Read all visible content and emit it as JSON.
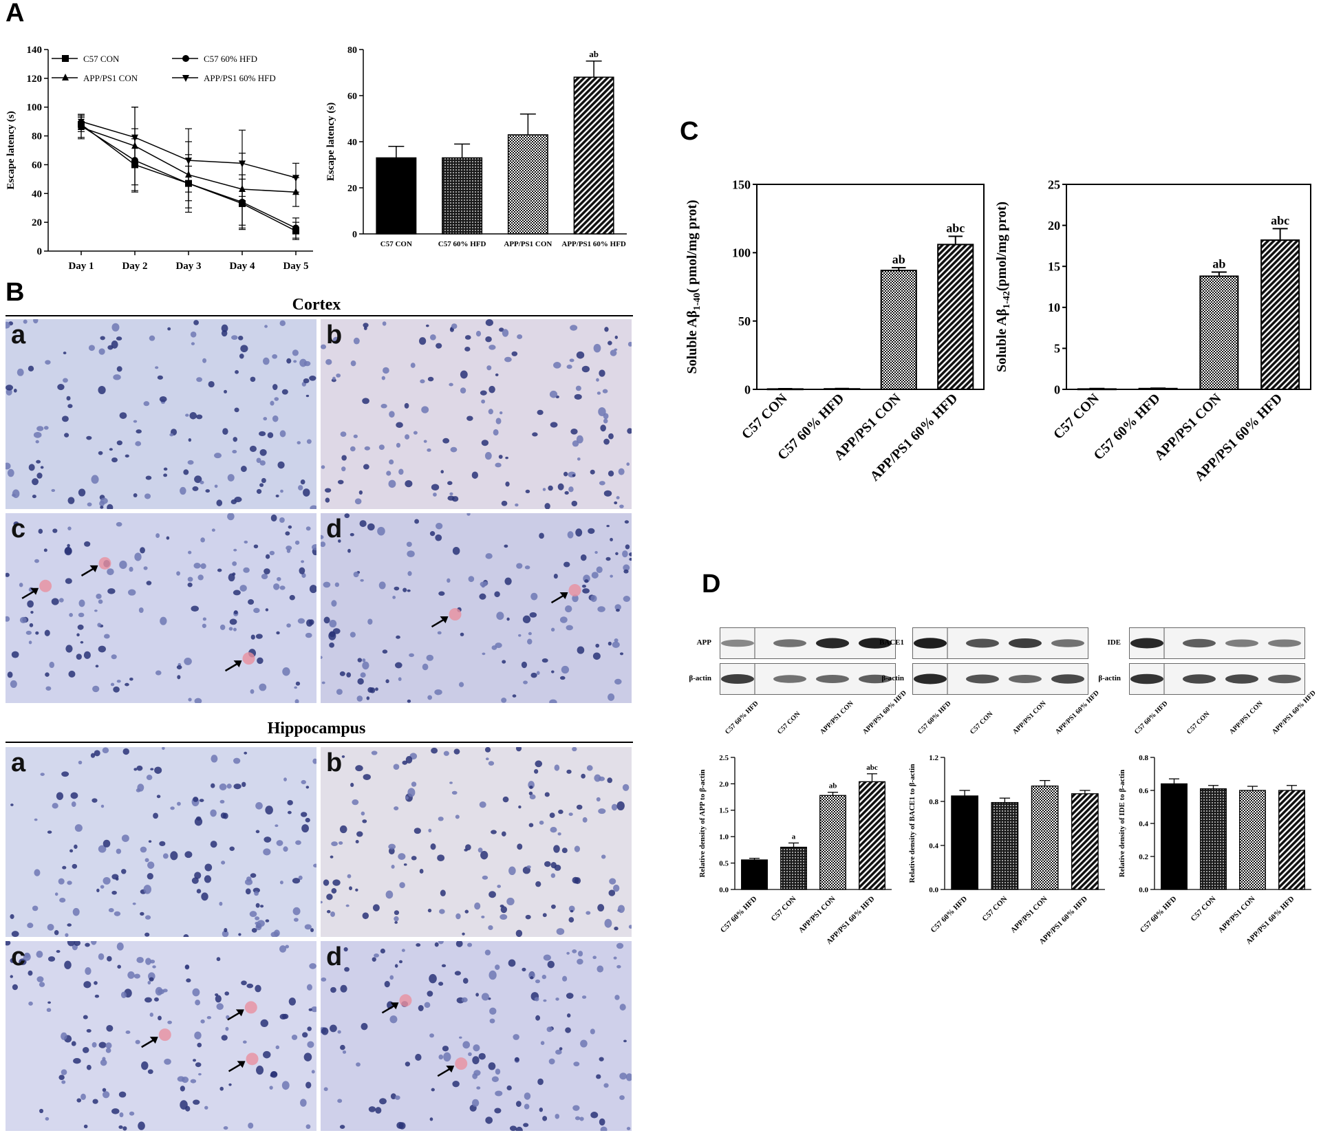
{
  "panel_labels": {
    "A": "A",
    "B": "B",
    "C": "C",
    "D": "D"
  },
  "colors": {
    "axis": "#000000",
    "tissue": "#c9cfe8",
    "nucleus": "#2a3478",
    "plaque": "#e8909f",
    "text": "#000000"
  },
  "histology": {
    "cortex_title": "Cortex",
    "hippocampus_title": "Hippocampus",
    "cortex_panels": [
      {
        "label": "a",
        "arrows": 0
      },
      {
        "label": "b",
        "arrows": 0
      },
      {
        "label": "c",
        "arrows": 3
      },
      {
        "label": "d",
        "arrows": 2
      }
    ],
    "hippocampus_panels": [
      {
        "label": "a",
        "arrows": 0
      },
      {
        "label": "b",
        "arrows": 0
      },
      {
        "label": "c",
        "arrows": 3
      },
      {
        "label": "d",
        "arrows": 2
      }
    ]
  },
  "western_blots": [
    {
      "protein": "APP",
      "loading": "β-actin",
      "lanes": [
        "C57 60% HFD",
        "C57 CON",
        "APP/PS1 CON",
        "APP/PS1 60% HFD"
      ],
      "top_intensity": [
        0.45,
        0.55,
        0.9,
        0.95
      ],
      "bottom_intensity": [
        0.8,
        0.55,
        0.6,
        0.65
      ]
    },
    {
      "protein": "BACE1",
      "loading": "β-actin",
      "lanes": [
        "C57 60% HFD",
        "C57 CON",
        "APP/PS1 CON",
        "APP/PS1 60% HFD"
      ],
      "top_intensity": [
        0.95,
        0.7,
        0.8,
        0.55
      ],
      "bottom_intensity": [
        0.9,
        0.7,
        0.6,
        0.75
      ]
    },
    {
      "protein": "IDE",
      "loading": "β-actin",
      "lanes": [
        "C57 60% HFD",
        "C57 CON",
        "APP/PS1 CON",
        "APP/PS1 60% HFD"
      ],
      "top_intensity": [
        0.9,
        0.65,
        0.5,
        0.5
      ],
      "bottom_intensity": [
        0.85,
        0.75,
        0.75,
        0.65
      ]
    }
  ],
  "chart_data": [
    {
      "id": "A_line",
      "type": "line",
      "title": "",
      "xlabel": "",
      "ylabel": "Escape latency (s)",
      "x": [
        "Day 1",
        "Day 2",
        "Day 3",
        "Day 4",
        "Day 5"
      ],
      "ylim": [
        0,
        140
      ],
      "yticks": [
        0,
        20,
        40,
        60,
        80,
        100,
        120,
        140
      ],
      "legend": "top, two columns",
      "series": [
        {
          "name": "C57 CON",
          "marker": "square",
          "values": [
            88,
            60,
            47,
            33,
            14
          ],
          "err": [
            5,
            18,
            12,
            17,
            6
          ]
        },
        {
          "name": "C57 60% HFD",
          "marker": "circle",
          "values": [
            87,
            63,
            47,
            34,
            16
          ],
          "err": [
            8,
            22,
            20,
            19,
            7
          ]
        },
        {
          "name": "APP/PS1 CON",
          "marker": "triangle-up",
          "values": [
            86,
            73,
            53,
            43,
            41
          ],
          "err": [
            8,
            27,
            23,
            25,
            10
          ]
        },
        {
          "name": "APP/PS1 60% HFD",
          "marker": "triangle-down",
          "values": [
            90,
            79,
            63,
            61,
            51
          ],
          "err": [
            5,
            21,
            22,
            23,
            10
          ]
        }
      ]
    },
    {
      "id": "A_bar",
      "type": "bar",
      "title": "",
      "xlabel": "",
      "ylabel": "Escape latency (s)",
      "categories": [
        "C57  CON",
        "C57 60% HFD",
        "APP/PS1 CON",
        "APP/PS1 60% HFD"
      ],
      "values": [
        33,
        33,
        43,
        68
      ],
      "err": [
        5,
        6,
        9,
        7
      ],
      "annotations": [
        "",
        "",
        "",
        "ab"
      ],
      "ylim": [
        0,
        80
      ],
      "yticks": [
        0,
        20,
        40,
        60,
        80
      ],
      "fills": [
        "solid",
        "dots",
        "check",
        "diagonal"
      ]
    },
    {
      "id": "C_ab40",
      "type": "bar",
      "title": "",
      "xlabel": "",
      "ylabel": "Soluble Aβ1-40（pmol/mg prot)",
      "ylabel_main": "Soluble Aβ",
      "ylabel_sub": "1-40",
      "ylabel_rest": "( pmol/mg prot)",
      "categories": [
        "C57 CON",
        "C57 60% HFD",
        "APP/PS1 CON",
        "APP/PS1 60% HFD"
      ],
      "values": [
        0.3,
        0.4,
        87,
        106
      ],
      "err": [
        0.2,
        0.2,
        2,
        6
      ],
      "annotations": [
        "",
        "",
        "ab",
        "abc"
      ],
      "ylim": [
        0,
        150
      ],
      "yticks": [
        0,
        50,
        100,
        150
      ],
      "fills": [
        "solid",
        "dots",
        "check",
        "diagonal"
      ]
    },
    {
      "id": "C_ab42",
      "type": "bar",
      "title": "",
      "xlabel": "",
      "ylabel": "Soluble Aβ1-42(pmol/mg prot)",
      "ylabel_main": "Soluble Aβ",
      "ylabel_sub": "1-42",
      "ylabel_rest": "(pmol/mg prot)",
      "categories": [
        "C57 CON",
        "C57 60% HFD",
        "APP/PS1 CON",
        "APP/PS1 60% HFD"
      ],
      "values": [
        0.05,
        0.1,
        13.8,
        18.2
      ],
      "err": [
        0.05,
        0.05,
        0.5,
        1.4
      ],
      "annotations": [
        "",
        "",
        "ab",
        "abc"
      ],
      "ylim": [
        0,
        25
      ],
      "yticks": [
        0,
        5,
        10,
        15,
        20,
        25
      ],
      "fills": [
        "solid",
        "dots",
        "check",
        "diagonal"
      ]
    },
    {
      "id": "D_app",
      "type": "bar",
      "title": "",
      "xlabel": "",
      "ylabel": "Relative density of APP to β-actin",
      "categories": [
        "C57 60% HFD",
        "C57 CON",
        "APP/PS1 CON",
        "APP/PS1 60% HFD"
      ],
      "values": [
        0.56,
        0.8,
        1.78,
        2.04
      ],
      "err": [
        0.03,
        0.08,
        0.06,
        0.15
      ],
      "annotations": [
        "",
        "a",
        "ab",
        "abc"
      ],
      "ylim": [
        0,
        2.5
      ],
      "yticks": [
        0,
        0.5,
        1.0,
        1.5,
        2.0,
        2.5
      ],
      "ytick_labels": [
        "0.0",
        "0.5",
        "1.0",
        "1.5",
        "2.0",
        "2.5"
      ],
      "fills": [
        "solid",
        "dots",
        "check",
        "diagonal"
      ]
    },
    {
      "id": "D_bace1",
      "type": "bar",
      "title": "",
      "xlabel": "",
      "ylabel": "Relative density of BACE1 to β-actin",
      "categories": [
        "C57 60% HFD",
        "C57 CON",
        "APP/PS1 CON",
        "APP/PS1 60% HFD"
      ],
      "values": [
        0.85,
        0.79,
        0.94,
        0.87
      ],
      "err": [
        0.05,
        0.04,
        0.05,
        0.03
      ],
      "annotations": [
        "",
        "",
        "",
        ""
      ],
      "ylim": [
        0,
        1.2
      ],
      "yticks": [
        0,
        0.4,
        0.8,
        1.2
      ],
      "ytick_labels": [
        "0.0",
        "0.4",
        "0.8",
        "1.2"
      ],
      "fills": [
        "solid",
        "dots",
        "check",
        "diagonal"
      ]
    },
    {
      "id": "D_ide",
      "type": "bar",
      "title": "",
      "xlabel": "",
      "ylabel": "Relative density of IDE to β-actin",
      "categories": [
        "C57 60% HFD",
        "C57 CON",
        "APP/PS1 CON",
        "APP/PS1 60% HFD"
      ],
      "values": [
        0.64,
        0.61,
        0.6,
        0.6
      ],
      "err": [
        0.03,
        0.02,
        0.025,
        0.03
      ],
      "annotations": [
        "",
        "",
        "",
        ""
      ],
      "ylim": [
        0,
        0.8
      ],
      "yticks": [
        0,
        0.2,
        0.4,
        0.6,
        0.8
      ],
      "ytick_labels": [
        "0.0",
        "0.2",
        "0.4",
        "0.6",
        "0.8"
      ],
      "fills": [
        "solid",
        "dots",
        "check",
        "diagonal"
      ]
    }
  ]
}
